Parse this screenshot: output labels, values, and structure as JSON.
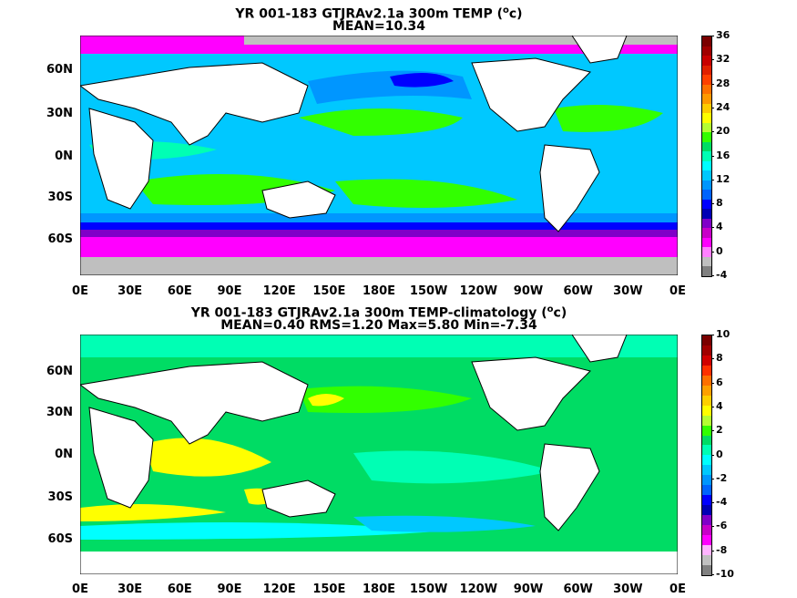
{
  "panels": [
    {
      "title_line1": "YR 001-183 GTJRAv2.1a 300m TEMP (",
      "title_unit": "c)",
      "title_line2": "MEAN=10.34",
      "y_labels": [
        "60N",
        "30N",
        "0N",
        "30S",
        "60S"
      ],
      "x_labels": [
        "0E",
        "30E",
        "60E",
        "90E",
        "120E",
        "150E",
        "180E",
        "150W",
        "120W",
        "90W",
        "60W",
        "30W",
        "0E"
      ],
      "colorbar": {
        "labels": [
          "36",
          "32",
          "28",
          "24",
          "20",
          "16",
          "12",
          "8",
          "4",
          "0",
          "-4"
        ],
        "colors": [
          "#7a0000",
          "#a00000",
          "#c80000",
          "#e02000",
          "#ff4000",
          "#ff7000",
          "#ff9900",
          "#ffcc00",
          "#ffff00",
          "#b4ff32",
          "#32ff00",
          "#00dc64",
          "#00ffb4",
          "#00ffff",
          "#00c8ff",
          "#0096ff",
          "#0064ff",
          "#0000ff",
          "#0000b4",
          "#8000c8",
          "#c800c8",
          "#ff00ff",
          "#ff80ff",
          "#bfbfbf",
          "#808080"
        ]
      }
    },
    {
      "title_line1": "YR 001-183 GTJRAv2.1a 300m TEMP-climatology (",
      "title_unit": "c)",
      "title_line2": "MEAN=0.40   RMS=1.20   Max=5.80   Min=-7.34",
      "y_labels": [
        "60N",
        "30N",
        "0N",
        "30S",
        "60S"
      ],
      "x_labels": [
        "0E",
        "30E",
        "60E",
        "90E",
        "120E",
        "150E",
        "180E",
        "150W",
        "120W",
        "90W",
        "60W",
        "30W",
        "0E"
      ],
      "colorbar": {
        "labels": [
          "10",
          "8",
          "6",
          "4",
          "2",
          "0",
          "-2",
          "-4",
          "-6",
          "-8",
          "-10"
        ],
        "colors": [
          "#7a0000",
          "#a00000",
          "#d00000",
          "#ff3000",
          "#ff7000",
          "#ffa000",
          "#ffd000",
          "#ffff00",
          "#b4ff32",
          "#32ff00",
          "#00dc64",
          "#00ffb4",
          "#00ffff",
          "#00c8ff",
          "#0096ff",
          "#0064ff",
          "#0000ff",
          "#0000b4",
          "#8000c8",
          "#c800c8",
          "#ff00ff",
          "#ffb4ff",
          "#c0c0c0",
          "#808080"
        ]
      }
    }
  ]
}
